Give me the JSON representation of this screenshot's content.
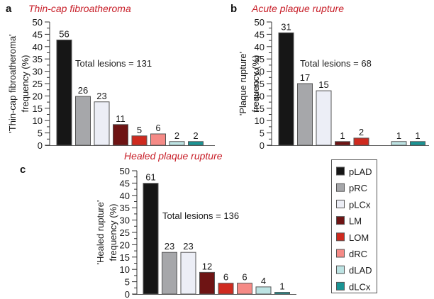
{
  "legend": {
    "items": [
      {
        "label": "pLAD",
        "color": "#161616"
      },
      {
        "label": "pRC",
        "color": "#a6a7aa"
      },
      {
        "label": "pLCx",
        "color": "#eceef6"
      },
      {
        "label": "LM",
        "color": "#6e1414"
      },
      {
        "label": "LOM",
        "color": "#cf2a1f"
      },
      {
        "label": "dRC",
        "color": "#f58a86"
      },
      {
        "label": "dLAD",
        "color": "#bde3e3"
      },
      {
        "label": "dLCx",
        "color": "#1a9494"
      }
    ]
  },
  "chart_data": [
    {
      "type": "bar",
      "panel": "a",
      "title": "Thin-cap fibroatheroma",
      "ylabel": [
        "'Thin-cap fibroatheroma'",
        "frequency (%)"
      ],
      "annotation": "Total lesions = 131",
      "ylim": [
        0,
        50
      ],
      "yticks": [
        0,
        5,
        10,
        15,
        20,
        25,
        30,
        35,
        40,
        45,
        50
      ],
      "categories": [
        "pLAD",
        "pRC",
        "pLCx",
        "LM",
        "LOM",
        "dRC",
        "dLAD",
        "dLCx"
      ],
      "values": [
        42.7,
        19.8,
        17.6,
        8.4,
        3.8,
        4.6,
        1.5,
        1.5
      ],
      "data_labels": [
        "56",
        "26",
        "23",
        "11",
        "5",
        "6",
        "2",
        "2"
      ]
    },
    {
      "type": "bar",
      "panel": "b",
      "title": "Acute plaque rupture",
      "ylabel": [
        "'Plaque rupture'",
        "frequency (%)"
      ],
      "annotation": "Total lesions = 68",
      "ylim": [
        0,
        50
      ],
      "yticks": [
        0,
        5,
        10,
        15,
        20,
        25,
        30,
        35,
        40,
        45,
        50
      ],
      "categories": [
        "pLAD",
        "pRC",
        "pLCx",
        "LM",
        "LOM",
        "dRC",
        "dLAD",
        "dLCx"
      ],
      "values": [
        45.6,
        25.0,
        22.1,
        1.5,
        2.9,
        0,
        1.5,
        1.5
      ],
      "data_labels": [
        "31",
        "17",
        "15",
        "1",
        "2",
        "",
        "1",
        "1"
      ]
    },
    {
      "type": "bar",
      "panel": "c",
      "title": "Healed plaque rupture",
      "ylabel": [
        "'Healed rupture'",
        "frequency (%)"
      ],
      "annotation": "Total lesions = 136",
      "ylim": [
        0,
        50
      ],
      "yticks": [
        0,
        5,
        10,
        15,
        20,
        25,
        30,
        35,
        40,
        45,
        50
      ],
      "categories": [
        "pLAD",
        "pRC",
        "pLCx",
        "LM",
        "LOM",
        "dRC",
        "dLAD",
        "dLCx"
      ],
      "values": [
        44.9,
        16.9,
        16.9,
        8.8,
        4.4,
        4.4,
        2.9,
        0.7
      ],
      "data_labels": [
        "61",
        "23",
        "23",
        "12",
        "6",
        "6",
        "4",
        "1"
      ]
    }
  ]
}
